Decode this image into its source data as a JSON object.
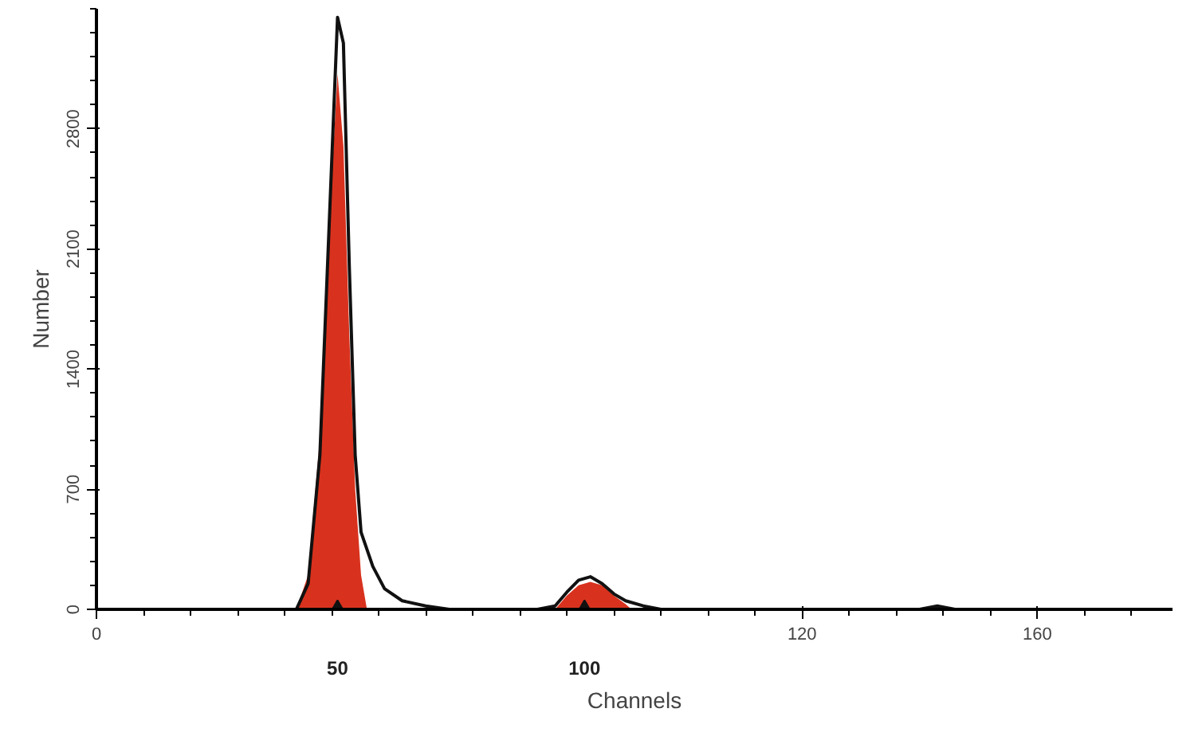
{
  "chart_data": {
    "type": "line",
    "xlabel": "Channels",
    "ylabel": "Number",
    "xlim": [
      0,
      183
    ],
    "ylim": [
      0,
      3500
    ],
    "xticks": [
      0,
      120,
      160
    ],
    "yticks": [
      0,
      700,
      1400,
      2100,
      2800
    ],
    "annotations": [
      {
        "text": "50",
        "x": 41,
        "y": 0
      },
      {
        "text": "100",
        "x": 83,
        "y": 0
      }
    ],
    "grid": false,
    "series": [
      {
        "type": "area",
        "color": "#d8321e",
        "x": [
          34,
          36,
          38,
          40,
          41,
          42,
          43,
          44,
          45,
          46,
          78,
          80,
          82,
          84,
          86,
          88,
          90,
          91
        ],
        "values": [
          0,
          200,
          1000,
          2500,
          3120,
          2700,
          1600,
          700,
          200,
          0,
          0,
          80,
          140,
          160,
          140,
          80,
          30,
          0
        ]
      },
      {
        "color": "#111111",
        "x": [
          30,
          34,
          36,
          38,
          40,
          41,
          42,
          43,
          44,
          45,
          47,
          49,
          52,
          56,
          60,
          75,
          78,
          80,
          82,
          84,
          86,
          88,
          90,
          93,
          96,
          100,
          140,
          143,
          146,
          175
        ],
        "values": [
          0,
          0,
          150,
          900,
          2600,
          3450,
          3300,
          2000,
          900,
          450,
          250,
          120,
          50,
          20,
          0,
          0,
          20,
          100,
          170,
          190,
          150,
          90,
          50,
          20,
          0,
          0,
          0,
          20,
          0,
          0
        ]
      }
    ]
  }
}
